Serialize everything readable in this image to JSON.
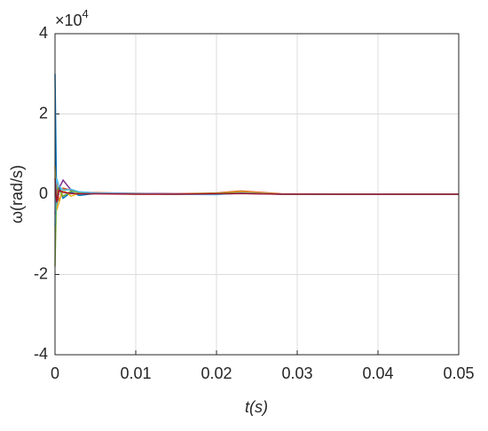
{
  "chart_data": {
    "type": "line",
    "x_label": "t(s)",
    "y_label": "ω(rad/s)",
    "y_multiplier": {
      "base": "×10",
      "exponent": "4"
    },
    "x": [
      0,
      0.0002,
      0.0005,
      0.001,
      0.002,
      0.003,
      0.005,
      0.01,
      0.015,
      0.02,
      0.023,
      0.028,
      0.05
    ],
    "series": [
      {
        "color": "#0072BD",
        "values": [
          3.0,
          -0.3,
          0.2,
          -0.1,
          0.05,
          -0.03,
          0.02,
          0.01,
          0.0,
          0.01,
          0.05,
          0.0,
          0.0
        ]
      },
      {
        "color": "#D95319",
        "values": [
          -0.5,
          0.3,
          -0.2,
          0.15,
          0.1,
          0.05,
          0.04,
          0.02,
          0.01,
          0.03,
          0.08,
          0.01,
          0.0
        ]
      },
      {
        "color": "#EDB120",
        "values": [
          0.7,
          -0.4,
          -0.2,
          0.1,
          -0.05,
          0.03,
          0.02,
          0.0,
          0.0,
          0.02,
          0.06,
          0.0,
          0.0
        ]
      },
      {
        "color": "#7E2F8E",
        "values": [
          0.2,
          0.1,
          0.15,
          0.35,
          0.1,
          0.05,
          0.03,
          0.02,
          0.01,
          0.0,
          0.02,
          0.0,
          0.0
        ]
      },
      {
        "color": "#77AC30",
        "values": [
          -1.8,
          0.2,
          0.1,
          -0.05,
          0.08,
          0.04,
          0.02,
          0.01,
          0.0,
          0.02,
          0.04,
          0.0,
          0.0
        ]
      },
      {
        "color": "#4DBEEE",
        "values": [
          -0.8,
          0.4,
          0.2,
          0.1,
          0.12,
          0.06,
          0.03,
          0.01,
          0.0,
          -0.01,
          0.03,
          0.0,
          0.0
        ]
      },
      {
        "color": "#A2142F",
        "values": [
          0.4,
          -0.2,
          0.1,
          0.05,
          0.02,
          0.01,
          0.01,
          0.0,
          0.0,
          0.01,
          0.02,
          0.0,
          0.0
        ]
      }
    ],
    "xlim": [
      0,
      0.05
    ],
    "ylim": [
      -4,
      4
    ],
    "xticks": [
      0,
      0.01,
      0.02,
      0.03,
      0.04,
      0.05
    ],
    "yticks": [
      -4,
      -2,
      0,
      2,
      4
    ],
    "grid": true
  }
}
